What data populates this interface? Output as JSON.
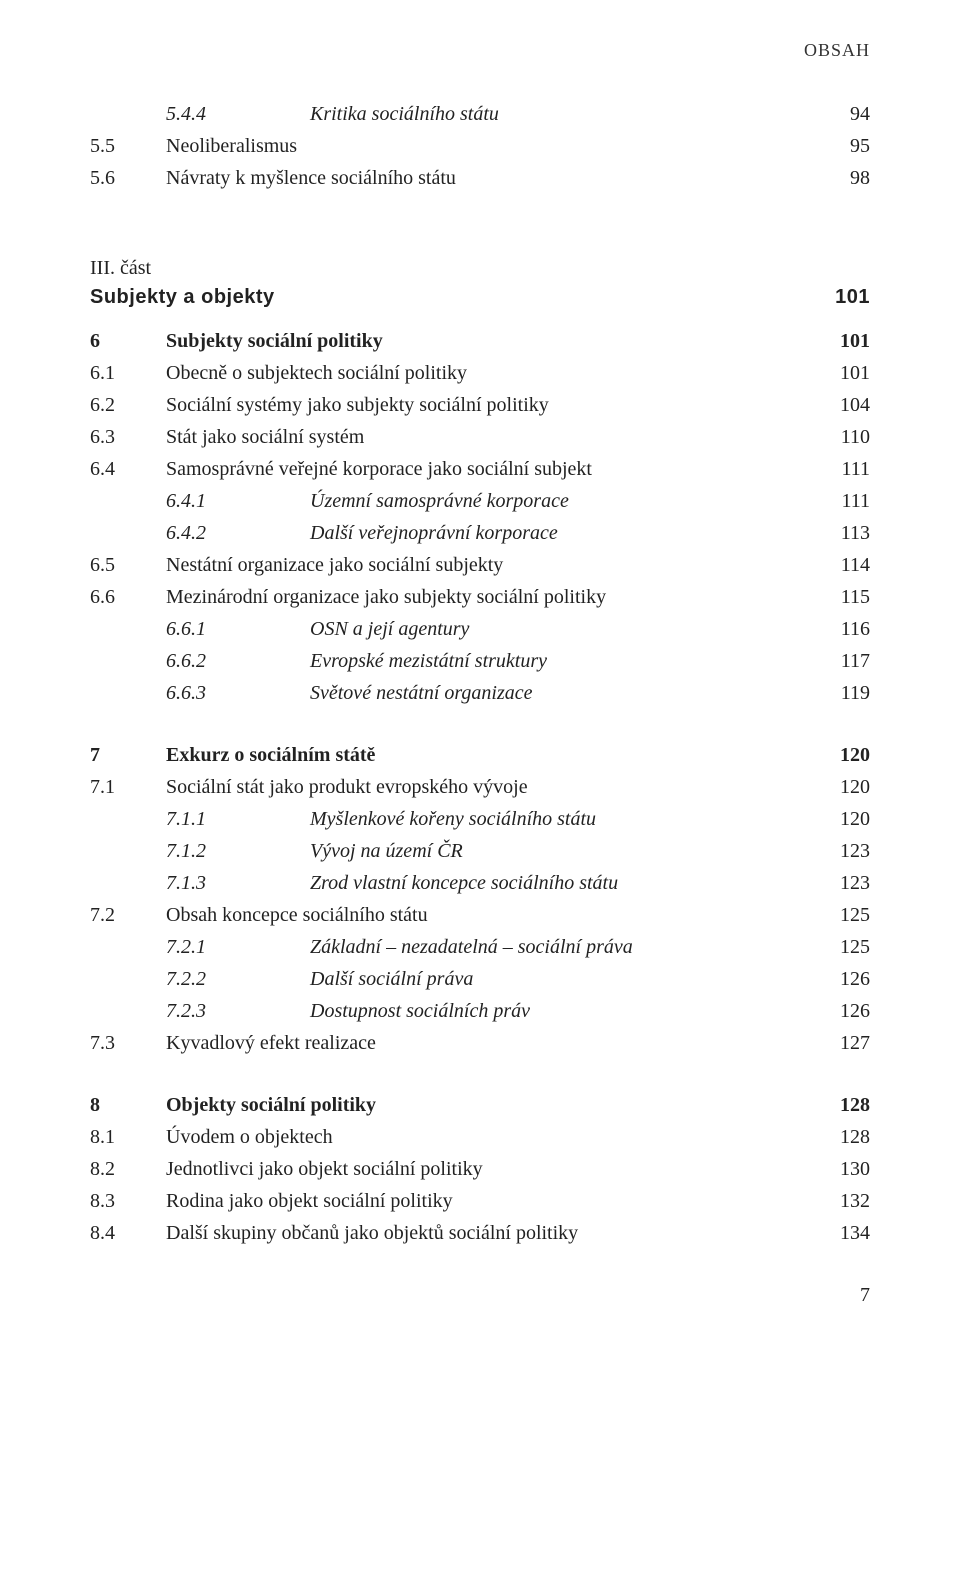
{
  "running_header": "OBSAH",
  "page_number": "7",
  "part": {
    "label": "III. část",
    "title": "Subjekty a objekty",
    "page": "101"
  },
  "lines": [
    {
      "indent": 2,
      "num": "5.4.4",
      "title": "Kritika sociálního státu",
      "page": "94",
      "italic": true
    },
    {
      "indent": 1,
      "num": "5.5",
      "title": "Neoliberalismus",
      "page": "95"
    },
    {
      "indent": 1,
      "num": "5.6",
      "title": "Návraty k myšlence sociálního státu",
      "page": "98"
    },
    {
      "spaceAfter": "big"
    },
    {
      "indent": 1,
      "num": "6",
      "title": "Subjekty sociální politiky",
      "page": "101",
      "bold": true
    },
    {
      "indent": 1,
      "num": "6.1",
      "title": "Obecně o subjektech sociální politiky",
      "page": "101"
    },
    {
      "indent": 1,
      "num": "6.2",
      "title": "Sociální systémy jako subjekty sociální politiky",
      "page": "104"
    },
    {
      "indent": 1,
      "num": "6.3",
      "title": "Stát jako sociální systém",
      "page": "110"
    },
    {
      "indent": 1,
      "num": "6.4",
      "title": "Samosprávné veřejné korporace jako sociální subjekt",
      "page": "111"
    },
    {
      "indent": 2,
      "num": "6.4.1",
      "title": "Územní samosprávné korporace",
      "page": "111",
      "italic": true
    },
    {
      "indent": 2,
      "num": "6.4.2",
      "title": "Další veřejnoprávní korporace",
      "page": "113",
      "italic": true
    },
    {
      "indent": 1,
      "num": "6.5",
      "title": "Nestátní organizace jako sociální subjekty",
      "page": "114"
    },
    {
      "indent": 1,
      "num": "6.6",
      "title": "Mezinárodní organizace jako subjekty sociální politiky",
      "page": "115"
    },
    {
      "indent": 2,
      "num": "6.6.1",
      "title": "OSN a její agentury",
      "page": "116",
      "italic": true
    },
    {
      "indent": 2,
      "num": "6.6.2",
      "title": "Evropské mezistátní struktury",
      "page": "117",
      "italic": true
    },
    {
      "indent": 2,
      "num": "6.6.3",
      "title": "Světové nestátní organizace",
      "page": "119",
      "italic": true
    },
    {
      "spaceAfter": "block"
    },
    {
      "indent": 1,
      "num": "7",
      "title": "Exkurz o sociálním státě",
      "page": "120",
      "bold": true
    },
    {
      "indent": 1,
      "num": "7.1",
      "title": "Sociální stát jako produkt evropského vývoje",
      "page": "120"
    },
    {
      "indent": 2,
      "num": "7.1.1",
      "title": "Myšlenkové kořeny sociálního státu",
      "page": "120",
      "italic": true
    },
    {
      "indent": 2,
      "num": "7.1.2",
      "title": "Vývoj na území ČR",
      "page": "123",
      "italic": true
    },
    {
      "indent": 2,
      "num": "7.1.3",
      "title": "Zrod vlastní koncepce sociálního státu",
      "page": "123",
      "italic": true
    },
    {
      "indent": 1,
      "num": "7.2",
      "title": "Obsah koncepce sociálního státu",
      "page": "125"
    },
    {
      "indent": 2,
      "num": "7.2.1",
      "title": "Základní – nezadatelná – sociální práva",
      "page": "125",
      "italic": true
    },
    {
      "indent": 2,
      "num": "7.2.2",
      "title": "Další sociální práva",
      "page": "126",
      "italic": true
    },
    {
      "indent": 2,
      "num": "7.2.3",
      "title": "Dostupnost sociálních práv",
      "page": "126",
      "italic": true
    },
    {
      "indent": 1,
      "num": "7.3",
      "title": "Kyvadlový efekt realizace",
      "page": "127"
    },
    {
      "spaceAfter": "block"
    },
    {
      "indent": 1,
      "num": "8",
      "title": "Objekty sociální politiky",
      "page": "128",
      "bold": true
    },
    {
      "indent": 1,
      "num": "8.1",
      "title": "Úvodem o objektech",
      "page": "128"
    },
    {
      "indent": 1,
      "num": "8.2",
      "title": "Jednotlivci jako objekt sociální politiky",
      "page": "130"
    },
    {
      "indent": 1,
      "num": "8.3",
      "title": "Rodina jako objekt sociální politiky",
      "page": "132"
    },
    {
      "indent": 1,
      "num": "8.4",
      "title": "Další skupiny občanů jako objektů sociální politiky",
      "page": "134"
    }
  ]
}
